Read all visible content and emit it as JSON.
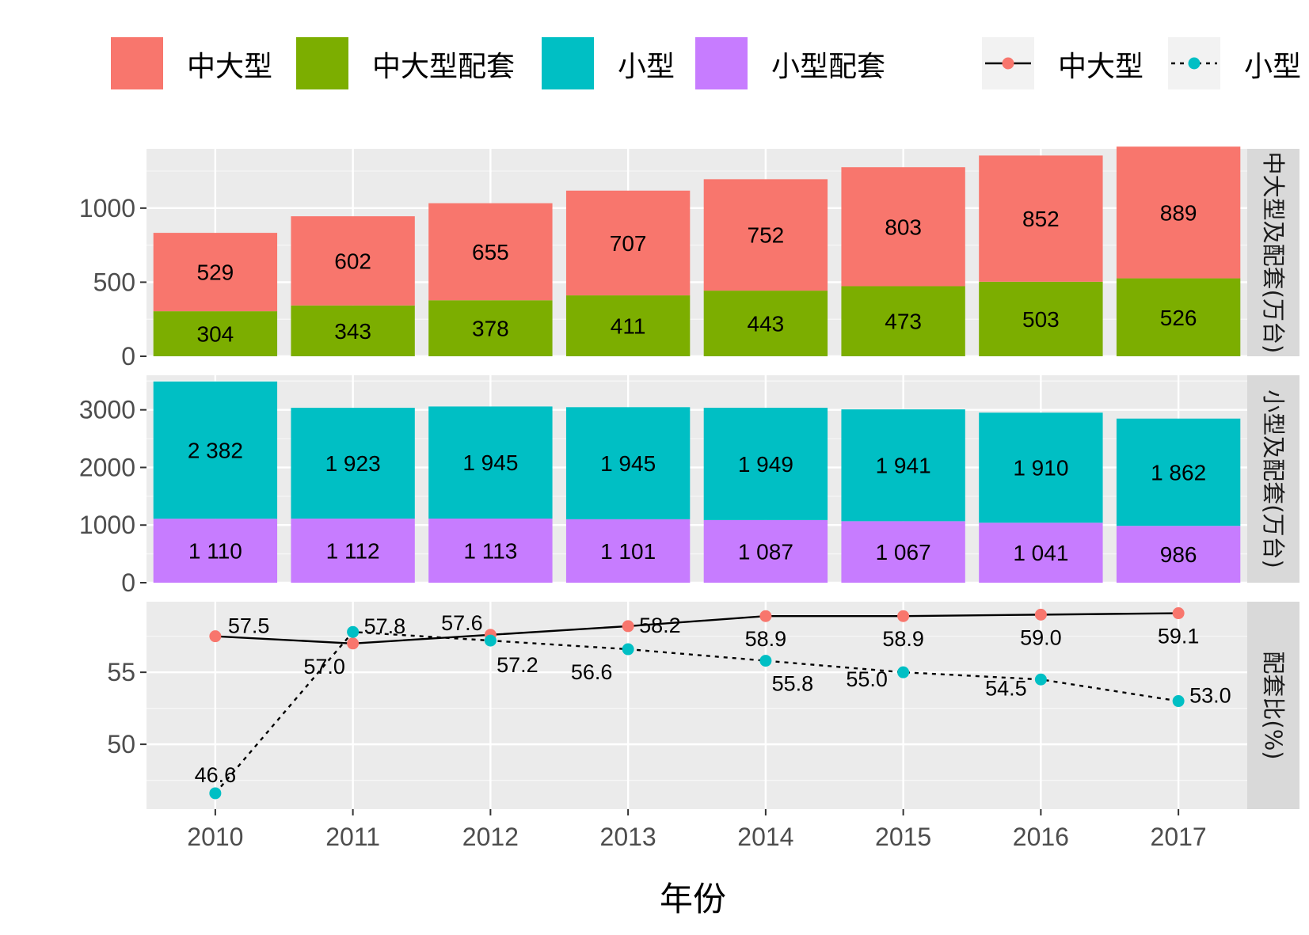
{
  "chart_data": {
    "type": "bar+line (faceted)",
    "xlabel": "年份",
    "years": [
      "2010",
      "2011",
      "2012",
      "2013",
      "2014",
      "2015",
      "2016",
      "2017"
    ],
    "legend": {
      "fill_entries": [
        {
          "key": "large_main",
          "label": "中大型",
          "color": "#F8766D"
        },
        {
          "key": "large_assembly",
          "label": "中大型配套",
          "color": "#7CAE00"
        },
        {
          "key": "small_main",
          "label": "小型",
          "color": "#00BFC4"
        },
        {
          "key": "small_assembly",
          "label": "小型配套",
          "color": "#C77CFF"
        }
      ],
      "line_entries": [
        {
          "key": "large_ratio",
          "label": "中大型",
          "color": "#F8766D",
          "dash": "solid"
        },
        {
          "key": "small_ratio",
          "label": "小型",
          "color": "#00BFC4",
          "dash": "dotted"
        }
      ],
      "placement": "top"
    },
    "panels": [
      {
        "strip": "中大型及配套(万台)",
        "type": "stacked_bar",
        "ylim": [
          0,
          1400
        ],
        "yticks": [
          0,
          500,
          1000
        ],
        "ytick_labels": [
          "0",
          "500",
          "1000"
        ],
        "series": [
          {
            "name": "中大型配套",
            "color": "#7CAE00",
            "values": [
              304,
              343,
              378,
              411,
              443,
              473,
              503,
              526
            ],
            "labels": [
              "304",
              "343",
              "378",
              "411",
              "443",
              "473",
              "503",
              "526"
            ]
          },
          {
            "name": "中大型",
            "color": "#F8766D",
            "values": [
              529,
              602,
              655,
              707,
              752,
              803,
              852,
              889
            ],
            "labels": [
              "529",
              "602",
              "655",
              "707",
              "752",
              "803",
              "852",
              "889"
            ]
          }
        ]
      },
      {
        "strip": "小型及配套(万台)",
        "type": "stacked_bar",
        "ylim": [
          0,
          3600
        ],
        "yticks": [
          0,
          1000,
          2000,
          3000
        ],
        "ytick_labels": [
          "0",
          "1000",
          "2000",
          "3000"
        ],
        "series": [
          {
            "name": "小型配套",
            "color": "#C77CFF",
            "values": [
              1110,
              1112,
              1113,
              1101,
              1087,
              1067,
              1041,
              986
            ],
            "labels": [
              "1 110",
              "1 112",
              "1 113",
              "1 101",
              "1 087",
              "1 067",
              "1 041",
              "986"
            ]
          },
          {
            "name": "小型",
            "color": "#00BFC4",
            "values": [
              2382,
              1923,
              1945,
              1945,
              1949,
              1941,
              1910,
              1862
            ],
            "labels": [
              "2 382",
              "1 923",
              "1 945",
              "1 945",
              "1 949",
              "1 941",
              "1 910",
              "1 862"
            ]
          }
        ]
      },
      {
        "strip": "配套比(%)",
        "type": "line",
        "ylim": [
          45.5,
          59.9
        ],
        "yticks": [
          50,
          55
        ],
        "ytick_labels": [
          "50",
          "55"
        ],
        "series": [
          {
            "name": "中大型",
            "color": "#F8766D",
            "dash": "solid",
            "values": [
              57.5,
              57.0,
              57.6,
              58.2,
              58.9,
              58.9,
              59.0,
              59.1
            ],
            "labels": [
              "57.5",
              "57.0",
              "57.6",
              "58.2",
              "58.9",
              "58.9",
              "59.0",
              "59.1"
            ]
          },
          {
            "name": "小型",
            "color": "#00BFC4",
            "dash": "dotted",
            "values": [
              46.6,
              57.8,
              57.2,
              56.6,
              55.8,
              55.0,
              54.5,
              53.0
            ],
            "labels": [
              "46.6",
              "57.8",
              "57.2",
              "56.6",
              "55.8",
              "55.0",
              "54.5",
              "53.0"
            ]
          }
        ]
      }
    ]
  }
}
